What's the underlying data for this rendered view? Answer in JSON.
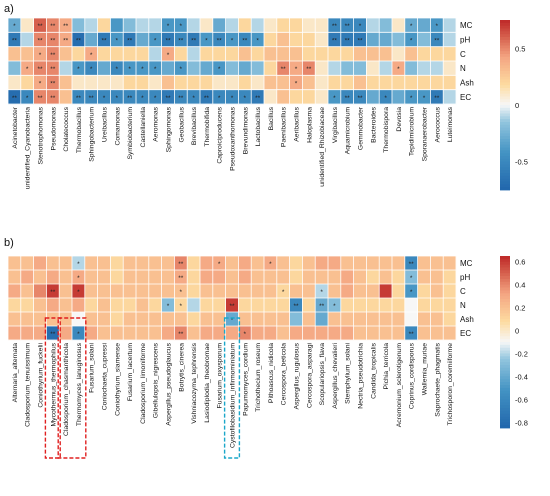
{
  "chart_data": [
    {
      "type": "heatmap",
      "panel_label": "a)",
      "rows": [
        "MC",
        "pH",
        "C",
        "N",
        "Ash",
        "EC"
      ],
      "columns": [
        "Acinetobacter",
        "unidentified_Cyanobacteria",
        "Stenotrophomonas",
        "Pseudomonas",
        "Cholatecoccus",
        "Thermobacillus",
        "Sphingobacterium",
        "Ureibacillus",
        "Comamonas",
        "Symbiobacterium",
        "Castellaniella",
        "Aeromonas",
        "Sphingomonas",
        "Geobacillus",
        "Brevibacillus",
        "Thermobifida",
        "Caproiciproducens",
        "Pseudoxanthomonas",
        "Brevundimonas",
        "Lactobacillus",
        "Bacillus",
        "Paenibacillus",
        "Aeribacillus",
        "Haloplasma",
        "unidentified_Rhizobiaceae",
        "Virgibacillus",
        "Aquamicrobium",
        "Gemmobacter",
        "Bacteroides",
        "Thermobispora",
        "Devosia",
        "Tepidimicrobium",
        "Sporanaerobacter",
        "Aerococcus",
        "Luteimonas"
      ],
      "values": [
        [
          -0.3,
          0.1,
          0.6,
          0.5,
          0.4,
          -0.2,
          -0.1,
          0.2,
          -0.4,
          -0.2,
          -0.1,
          -0.1,
          -0.4,
          -0.4,
          -0.1,
          0.1,
          -0.3,
          -0.1,
          0.2,
          -0.1,
          0.1,
          0.2,
          0.2,
          0.1,
          0.1,
          -0.5,
          -0.5,
          -0.5,
          -0.1,
          -0.2,
          0.1,
          -0.3,
          -0.3,
          -0.4,
          -0.1
        ],
        [
          -0.6,
          -0.1,
          0.5,
          0.5,
          0.4,
          -0.7,
          -0.3,
          -0.6,
          -0.4,
          -0.6,
          -0.3,
          -0.4,
          -0.6,
          -0.5,
          -0.6,
          -0.4,
          -0.5,
          -0.4,
          -0.5,
          -0.4,
          0.2,
          0.3,
          0.2,
          0.2,
          0.1,
          -0.6,
          -0.6,
          -0.6,
          -0.3,
          -0.3,
          -0.2,
          -0.4,
          -0.2,
          -0.5,
          -0.1
        ],
        [
          0.3,
          0.3,
          0.4,
          0.5,
          0.3,
          0.2,
          0.4,
          0.2,
          0.2,
          0.2,
          0.2,
          -0.1,
          0.4,
          0.2,
          -0.1,
          0.2,
          0.2,
          0.2,
          0.3,
          0.2,
          0.3,
          0.3,
          0.3,
          0.2,
          0.2,
          0.2,
          0.2,
          0.3,
          0.3,
          0.3,
          0.1,
          0.3,
          0.2,
          0.2,
          0.2
        ],
        [
          -0.2,
          0.4,
          0.5,
          0.5,
          -0.1,
          -0.4,
          -0.5,
          -0.3,
          -0.5,
          -0.4,
          -0.4,
          -0.4,
          -0.3,
          -0.4,
          -0.2,
          -0.3,
          -0.4,
          -0.2,
          -0.3,
          -0.2,
          0.2,
          0.5,
          0.4,
          0.5,
          0.1,
          -0.1,
          -0.2,
          -0.2,
          0.1,
          -0.1,
          0.4,
          -0.2,
          -0.1,
          -0.1,
          0.1
        ],
        [
          0.1,
          0.2,
          0.4,
          0.5,
          0.3,
          0.1,
          0.1,
          0.1,
          0.1,
          0.2,
          0.2,
          0.1,
          0.3,
          0.2,
          0.2,
          0.2,
          0.1,
          0.1,
          0.2,
          0.1,
          0.3,
          0.3,
          0.4,
          0.3,
          0.1,
          0.2,
          0.2,
          0.3,
          0.2,
          0.2,
          0.2,
          0.2,
          0.2,
          0.2,
          0.2
        ],
        [
          -0.7,
          -0.5,
          0.5,
          0.5,
          0.3,
          -0.5,
          -0.5,
          -0.5,
          -0.5,
          -0.5,
          -0.5,
          -0.5,
          -0.6,
          -0.5,
          -0.5,
          -0.6,
          -0.5,
          -0.5,
          -0.5,
          -0.6,
          0.1,
          0.3,
          0.2,
          0.2,
          0.1,
          -0.4,
          -0.5,
          -0.5,
          -0.3,
          -0.5,
          -0.3,
          -0.4,
          -0.4,
          -0.6,
          -0.1
        ]
      ],
      "significance": [
        [
          "*",
          "",
          "**",
          "**",
          "**",
          "",
          "",
          "",
          "",
          "",
          "",
          "",
          "*",
          "*",
          "",
          "",
          "",
          "",
          "",
          "",
          "",
          "",
          "",
          "",
          "",
          "**",
          "**",
          "*",
          "",
          "",
          "",
          "*",
          "",
          "*",
          ""
        ],
        [
          "**",
          "",
          "**",
          "**",
          "**",
          "**",
          "",
          "**",
          "*",
          "**",
          "",
          "*",
          "**",
          "**",
          "**",
          "*",
          "**",
          "*",
          "**",
          "*",
          "",
          "",
          "",
          "",
          "",
          "**",
          "**",
          "**",
          "",
          "",
          "",
          "*",
          "",
          "**",
          ""
        ],
        [
          "",
          "",
          "*",
          "**",
          "",
          "",
          "*",
          "",
          "",
          "",
          "",
          "",
          "*",
          "",
          "",
          "",
          "",
          "",
          "",
          "",
          "",
          "",
          "",
          "",
          "",
          "",
          "",
          "",
          "",
          "",
          "",
          "",
          "",
          "",
          ""
        ],
        [
          "",
          "*",
          "**",
          "**",
          "",
          "*",
          "*",
          "",
          "*",
          "*",
          "*",
          "*",
          "",
          "*",
          "",
          "",
          "*",
          "",
          "",
          "",
          "",
          "**",
          "*",
          "**",
          "",
          "",
          "",
          "",
          "",
          "",
          "*",
          "",
          "",
          "",
          ""
        ],
        [
          "",
          "",
          "*",
          "**",
          "",
          "",
          "",
          "",
          "",
          "",
          "",
          "",
          "",
          "",
          "",
          "",
          "",
          "",
          "",
          "",
          "",
          "",
          "*",
          "",
          "",
          "",
          "",
          "",
          "",
          "",
          "",
          "",
          "",
          "",
          ""
        ],
        [
          "**",
          "*",
          "**",
          "**",
          "",
          "**",
          "**",
          "*",
          "*",
          "**",
          "*",
          "*",
          "**",
          "**",
          "*",
          "**",
          "*",
          "*",
          "*",
          "**",
          "",
          "",
          "",
          "",
          "",
          "*",
          "**",
          "**",
          "",
          "*",
          "",
          "*",
          "*",
          "**",
          ""
        ]
      ],
      "colorbar": {
        "ticks": [
          0.5,
          0,
          -0.5
        ],
        "min": -0.75,
        "max": 0.75
      }
    },
    {
      "type": "heatmap",
      "panel_label": "b)",
      "rows": [
        "MC",
        "pH",
        "C",
        "N",
        "Ash",
        "EC"
      ],
      "columns": [
        "Alternaria_alternata",
        "Cladosporium_tenuissimum",
        "Coniothyrium_fuckelii",
        "Mycothermus_thermophilus",
        "Cladosporium_chasmanthicola",
        "Thermomyces_lanuginosus",
        "Fusarium_solani",
        "Coniochaeta_cupressi",
        "Coniothyrium_siamense",
        "Fusarium_lacertum",
        "Cladosporium_limoniforme",
        "Gibellulopsis_nigrescens",
        "Aspergillus_pseudoglaucus",
        "Botrytis_cinerea",
        "Vishniacozyma_tephrensis",
        "Lasiodiplodia_theobromae",
        "Fusarium_oxysporum",
        "Cystofilobasidium_infirmominiatum",
        "Papumomyces_cordium",
        "Trichothecium_roseum",
        "Pithoascus_nidicola",
        "Cercospora_beticola",
        "Aspergillus_rugulosus",
        "Cercospora_asparagi",
        "Scopulariopsis_flava",
        "Aspergillus_chevalieri",
        "Stemphylium_solani",
        "Nectria_pseudotrichia",
        "Candida_tropicalis",
        "Pichia_terricola",
        "Acremonium_sclerotigenum",
        "Coprinus_cordisporus",
        "Wallemia_muriae",
        "Saprochaete_phagmatis",
        "Trichosporon_coremiiforme"
      ],
      "values": [
        [
          0.2,
          0.2,
          0.3,
          0.2,
          0.2,
          -0.2,
          0.2,
          0.2,
          0.1,
          0.2,
          0.2,
          0.2,
          0.2,
          0.4,
          0.1,
          0.3,
          0.3,
          0.2,
          0.3,
          0.2,
          0.3,
          0.2,
          0.1,
          0.2,
          0.3,
          0.3,
          0.2,
          0.2,
          0.2,
          0.2,
          0.2,
          -0.6,
          0.2,
          0.2,
          0.2
        ],
        [
          0.2,
          0.3,
          0.2,
          0.3,
          0.2,
          0.3,
          0.2,
          0.2,
          0.1,
          0.2,
          0.2,
          0.2,
          0.2,
          0.3,
          0.1,
          0.3,
          0.3,
          0.2,
          0.3,
          0.2,
          0.2,
          0.2,
          0.1,
          0.2,
          0.2,
          0.2,
          0.3,
          0.2,
          0.1,
          0.2,
          0.1,
          -0.3,
          0.2,
          0.2,
          0.1
        ],
        [
          0.3,
          0.2,
          0.4,
          0.6,
          0.2,
          0.6,
          0.2,
          0.2,
          0.2,
          0.2,
          0.2,
          0.2,
          0.2,
          0.2,
          0.1,
          0.2,
          0.2,
          0.2,
          0.2,
          0.2,
          0.2,
          0.1,
          0.2,
          0.2,
          -0.2,
          0.2,
          0.3,
          0.2,
          0.2,
          0.6,
          0.1,
          -0.5,
          0.1,
          0.2,
          0.1
        ],
        [
          0.1,
          0.1,
          0.2,
          0.3,
          0.2,
          0.3,
          0.1,
          0.2,
          0.1,
          0.1,
          0.2,
          0.1,
          -0.3,
          0.1,
          -0.2,
          0.1,
          0.1,
          0.6,
          0.1,
          0.1,
          0.1,
          0.1,
          -0.6,
          0.1,
          -0.4,
          -0.3,
          0.1,
          0.1,
          0.1,
          0.1,
          0.1,
          -0.1,
          0.1,
          0.1,
          0.1
        ],
        [
          0.2,
          0.2,
          0.2,
          0.2,
          0.2,
          -0.1,
          0.2,
          0.2,
          0.1,
          0.2,
          0.2,
          0.2,
          0.2,
          0.2,
          0.1,
          0.2,
          0.2,
          -0.4,
          0.2,
          0.2,
          0.2,
          0.2,
          -0.3,
          0.2,
          -0.4,
          0.2,
          0.2,
          0.2,
          0.2,
          0.2,
          0.2,
          -0.1,
          0.2,
          0.2,
          0.1
        ],
        [
          0.3,
          0.3,
          0.3,
          -0.8,
          0.3,
          -0.6,
          0.3,
          0.2,
          0.2,
          0.2,
          0.2,
          0.2,
          0.3,
          0.4,
          0.2,
          0.3,
          0.3,
          0.3,
          0.4,
          0.3,
          0.3,
          0.2,
          0.3,
          0.3,
          0.3,
          0.3,
          0.3,
          0.2,
          0.2,
          0.2,
          0.2,
          -0.6,
          0.2,
          0.2,
          0.2
        ]
      ],
      "significance": [
        [
          "",
          "",
          "",
          "",
          "",
          "*",
          "",
          "",
          "",
          "",
          "",
          "",
          "",
          "**",
          "",
          "",
          "*",
          "",
          "",
          "",
          "*",
          "",
          "",
          "",
          "",
          "",
          "",
          "",
          "",
          "",
          "",
          "**",
          "",
          "",
          ""
        ],
        [
          "",
          "",
          "",
          "",
          "",
          "*",
          "",
          "",
          "",
          "",
          "",
          "",
          "",
          "**",
          "",
          "",
          "",
          "",
          "",
          "",
          "",
          "",
          "",
          "",
          "",
          "",
          "",
          "",
          "",
          "",
          "",
          "*",
          "",
          "",
          ""
        ],
        [
          "",
          "",
          "",
          "**",
          "",
          "*",
          "",
          "",
          "",
          "",
          "",
          "",
          "",
          "*",
          "",
          "",
          "",
          "",
          "",
          "",
          "",
          "*",
          "",
          "",
          "*",
          "",
          "",
          "",
          "",
          "",
          "",
          "*",
          "",
          "",
          ""
        ],
        [
          "",
          "",
          "",
          "",
          "",
          "",
          "",
          "",
          "",
          "",
          "",
          "",
          "*",
          "*",
          "",
          "",
          "",
          "**",
          "",
          "",
          "",
          "",
          "**",
          "",
          "**",
          "*",
          "",
          "",
          "",
          "",
          "",
          "",
          "",
          "",
          ""
        ],
        [
          "",
          "",
          "",
          "",
          "",
          "",
          "",
          "",
          "",
          "",
          "",
          "",
          "",
          "",
          "",
          "",
          "",
          "*",
          "",
          "",
          "",
          "",
          "",
          "",
          "",
          "",
          "",
          "",
          "",
          "",
          "",
          "",
          "",
          "",
          ""
        ],
        [
          "",
          "",
          "",
          "**",
          "",
          "*",
          "",
          "",
          "",
          "",
          "",
          "",
          "",
          "**",
          "",
          "",
          "",
          "",
          "*",
          "",
          "",
          "",
          "",
          "",
          "",
          "",
          "",
          "",
          "",
          "",
          "",
          "**",
          "",
          "",
          ""
        ]
      ],
      "highlighted_red": [
        "Mycothermus_thermophilus",
        "Cladosporium_chasmanthicola",
        "Thermomyces_lanuginosus"
      ],
      "highlighted_cyan": [
        "Cystofilobasidium_infirmominiatum"
      ],
      "colorbar": {
        "ticks": [
          0.6,
          0.4,
          0.2,
          0,
          -0.2,
          -0.4,
          -0.6,
          -0.8
        ],
        "min": -0.85,
        "max": 0.65
      }
    }
  ]
}
